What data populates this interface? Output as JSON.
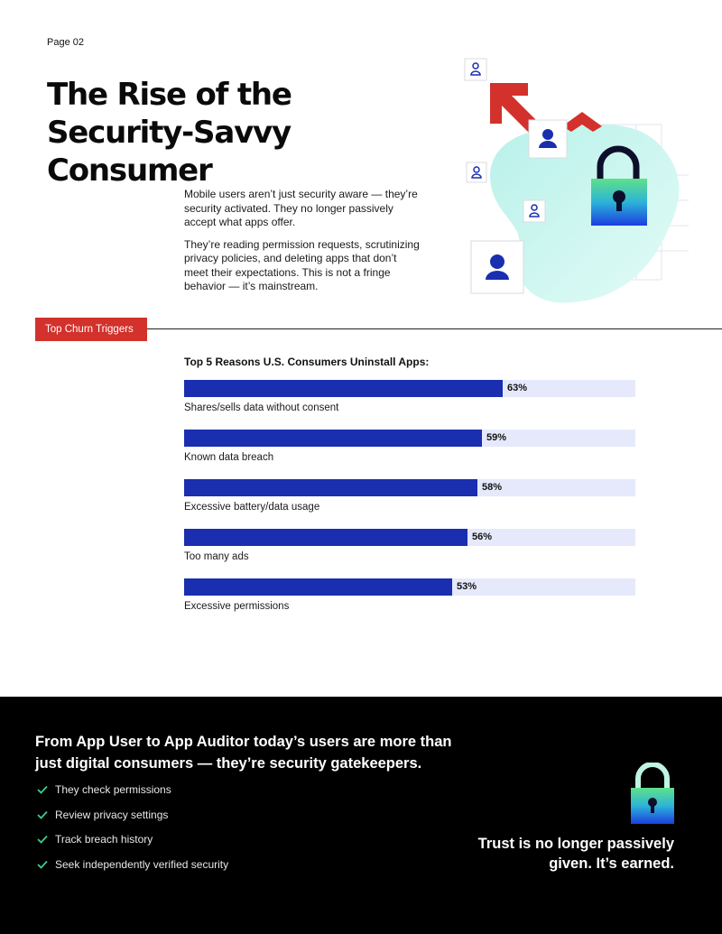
{
  "page": {
    "number": "Page 02",
    "title": "The Rise of the Security-Savvy Consumer"
  },
  "intro": {
    "p1": "Mobile users aren’t just security aware — they’re security activated. They no longer passively accept what apps offer.",
    "p2": "They’re reading permission requests, scrutinizing privacy policies, and deleting apps that don’t meet their expectations. This is not a fringe behavior — it’s mainstream."
  },
  "section": {
    "tag": "Top Churn Triggers"
  },
  "colors": {
    "bar": "#1a2eb0",
    "track": "#e6e9fb",
    "tag": "#d3312c",
    "check": "#3ecf8e"
  },
  "chart_data": {
    "type": "bar",
    "orientation": "horizontal",
    "title": "Top 5 Reasons U.S. Consumers Uninstall Apps:",
    "categories": [
      "Shares/sells data without consent",
      "Known data breach",
      "Excessive battery/data usage",
      "Too many ads",
      "Excessive permissions"
    ],
    "values": [
      63,
      59,
      58,
      56,
      53
    ],
    "value_labels": [
      "63%",
      "59%",
      "58%",
      "56%",
      "53%"
    ],
    "xlim": [
      0,
      100
    ]
  },
  "footer": {
    "heading": "From App User to App Auditor today’s users are more than just digital consumers — they’re security gatekeepers.",
    "items": [
      "They check permissions",
      "Review privacy settings",
      "Track breach history",
      "Seek independently verified security"
    ],
    "quote_line1": "Trust is no longer passively",
    "quote_line2": "given. It’s earned."
  }
}
